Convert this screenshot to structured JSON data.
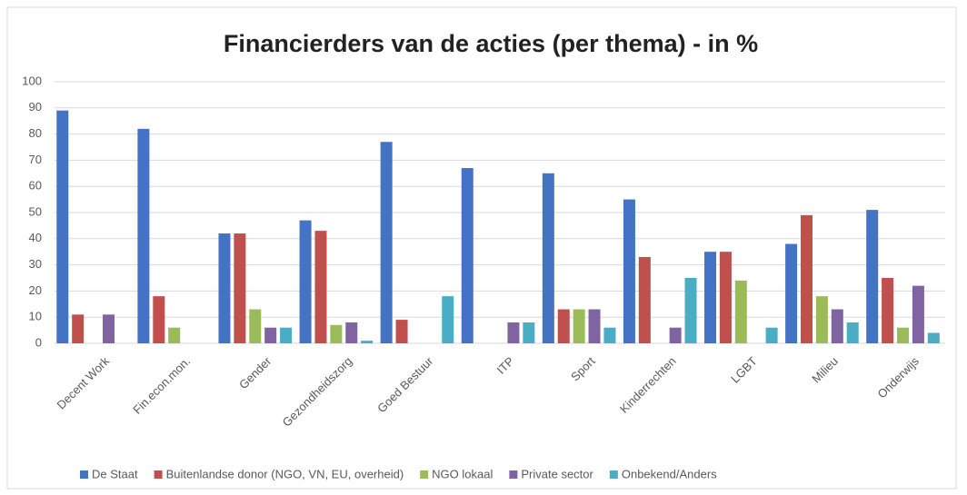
{
  "chart_data": {
    "type": "bar",
    "title": "Financierders van de acties (per thema) - in %",
    "categories": [
      "Decent Work",
      "Fin.econ.mon.",
      "Gender",
      "Gezondheidszorg",
      "Goed Bestuur",
      "ITP",
      "Sport",
      "Kinderrechten",
      "LGBT",
      "Milieu",
      "Onderwijs"
    ],
    "series": [
      {
        "name": "De Staat",
        "color": "#4472c4",
        "values": [
          89,
          82,
          42,
          47,
          77,
          67,
          65,
          55,
          35,
          38,
          51
        ]
      },
      {
        "name": "Buitenlandse donor (NGO, VN, EU, overheid)",
        "color": "#c0504d",
        "values": [
          11,
          18,
          42,
          43,
          9,
          0,
          13,
          33,
          35,
          49,
          25
        ]
      },
      {
        "name": "NGO lokaal",
        "color": "#9bbb59",
        "values": [
          0,
          6,
          13,
          7,
          0,
          0,
          13,
          0,
          24,
          18,
          6
        ]
      },
      {
        "name": "Private sector",
        "color": "#8064a2",
        "values": [
          11,
          0,
          6,
          8,
          0,
          8,
          13,
          6,
          0,
          13,
          22
        ]
      },
      {
        "name": "Onbekend/Anders",
        "color": "#4bacc6",
        "values": [
          0,
          0,
          6,
          1,
          18,
          8,
          6,
          25,
          6,
          8,
          4
        ]
      }
    ],
    "ylim": [
      0,
      100
    ],
    "yticks": [
      0,
      10,
      20,
      30,
      40,
      50,
      60,
      70,
      80,
      90,
      100
    ],
    "grid": true,
    "legend": "bottom"
  }
}
